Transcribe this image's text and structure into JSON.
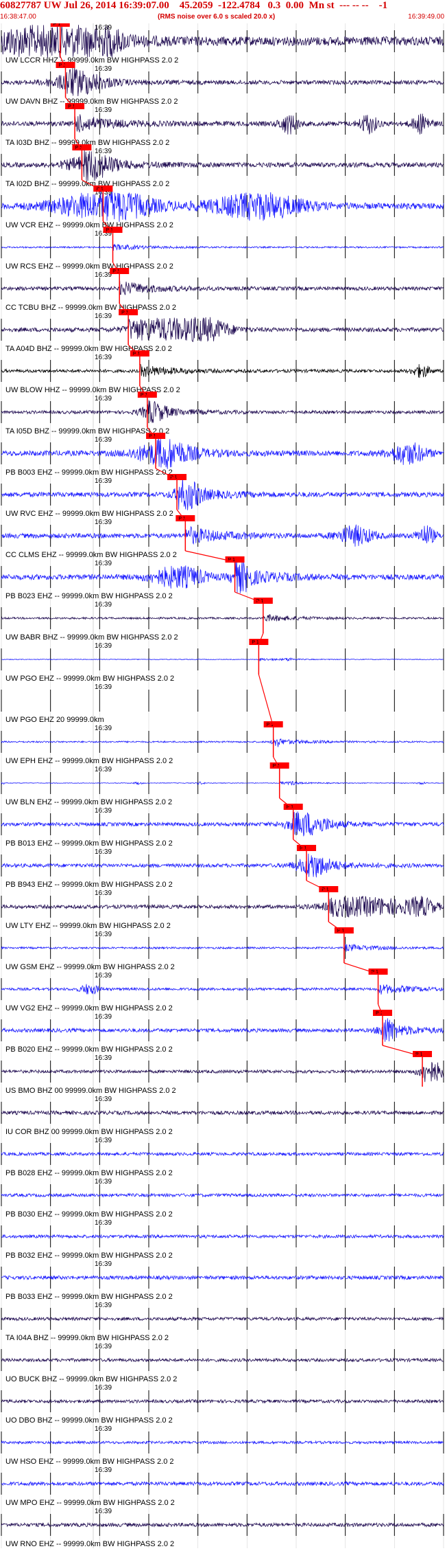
{
  "header": {
    "title": "60827787 UW Jul 26, 2014 16:39:07.00    45.2059  -122.4784   0.3  0.00  Mn st  --- -- --    -1",
    "start_time": "16:38:47.00",
    "note": "(RMS noise over 6.0 s scaled 20.0 x)",
    "end_time": "16:39:49.00"
  },
  "chart_data": {
    "type": "line",
    "x_range": [
      "16:38:47.00",
      "16:39:49.00"
    ],
    "minute_tick_label": "16:39",
    "phase_pick_label": "P 1",
    "grid": true,
    "colors": {
      "blue": "#1a1aff",
      "purple": "#1e0a50",
      "black": "#000000",
      "pick": "#ff0000"
    },
    "traces": [
      {
        "label": "UW LCCR HHZ -- 99999.0km BW  HIGHPASS  2.0  2",
        "color": "purple",
        "pick_frac": 0.133,
        "amp": 0.85,
        "bursts": [
          [
            0.1,
            0.12
          ],
          [
            0.2,
            0.05
          ]
        ]
      },
      {
        "label": "UW DAVN BHZ -- 99999.0km BW  HIGHPASS  2.0  2",
        "color": "purple",
        "pick_frac": 0.145,
        "amp": 0.4,
        "bursts": [
          [
            0.17,
            0.06
          ]
        ]
      },
      {
        "label": "TA I03D BHZ -- 99999.0km BW  HIGHPASS  2.0  2",
        "color": "purple",
        "pick_frac": 0.166,
        "amp": 0.45,
        "bursts": [
          [
            0.65,
            0.02
          ],
          [
            0.83,
            0.02
          ],
          [
            0.95,
            0.02
          ]
        ]
      },
      {
        "label": "TA I02D BHZ -- 99999.0km BW  HIGHPASS  2.0  2",
        "color": "purple",
        "pick_frac": 0.182,
        "amp": 0.45,
        "bursts": [
          [
            0.2,
            0.05
          ]
        ]
      },
      {
        "label": "UW VCR EHZ -- 99999.0km BW  HIGHPASS  2.0  2",
        "color": "blue",
        "pick_frac": 0.23,
        "amp": 0.6,
        "bursts": [
          [
            0.22,
            0.1
          ],
          [
            0.58,
            0.1
          ]
        ]
      },
      {
        "label": "UW RCS EHZ -- 99999.0km BW  HIGHPASS  2.0  2",
        "color": "blue",
        "pick_frac": 0.252,
        "amp": 0.15,
        "bursts": []
      },
      {
        "label": "CC TCBU BHZ -- 99999.0km BW  HIGHPASS  2.0  2",
        "color": "purple",
        "pick_frac": 0.267,
        "amp": 0.35,
        "bursts": []
      },
      {
        "label": "TA A04D BHZ -- 99999.0km BW  HIGHPASS  2.0  2",
        "color": "purple",
        "pick_frac": 0.287,
        "amp": 0.4,
        "bursts": [
          [
            0.38,
            0.08
          ],
          [
            0.47,
            0.05
          ]
        ]
      },
      {
        "label": "UW BLOW HHZ -- 99999.0km BW  HIGHPASS  2.0  2",
        "color": "black",
        "pick_frac": 0.313,
        "amp": 0.3,
        "bursts": [
          [
            0.95,
            0.02
          ]
        ]
      },
      {
        "label": "TA I05D BHZ -- 99999.0km BW  HIGHPASS  2.0  2",
        "color": "purple",
        "pick_frac": 0.33,
        "amp": 0.3,
        "bursts": [
          [
            0.34,
            0.03
          ]
        ]
      },
      {
        "label": "PB B003 EHZ -- 99999.0km BW  HIGHPASS  2.0  2",
        "color": "blue",
        "pick_frac": 0.349,
        "amp": 0.5,
        "bursts": [
          [
            0.36,
            0.06
          ],
          [
            0.92,
            0.04
          ]
        ]
      },
      {
        "label": "UW RVC EHZ -- 99999.0km BW  HIGHPASS  2.0  2",
        "color": "blue",
        "pick_frac": 0.397,
        "amp": 0.45,
        "bursts": [
          [
            0.42,
            0.03
          ]
        ]
      },
      {
        "label": "CC CLMS EHZ -- 99999.0km BW  HIGHPASS  2.0  2",
        "color": "blue",
        "pick_frac": 0.416,
        "amp": 0.45,
        "bursts": [
          [
            0.8,
            0.04
          ],
          [
            0.96,
            0.02
          ]
        ]
      },
      {
        "label": "PB B023 EHZ -- 99999.0km BW  HIGHPASS  2.0  2",
        "color": "blue",
        "pick_frac": 0.528,
        "amp": 0.5,
        "bursts": [
          [
            0.54,
            0.02
          ],
          [
            0.4,
            0.06
          ]
        ]
      },
      {
        "label": "UW BABR BHZ -- 99999.0km BW  HIGHPASS  2.0  2",
        "color": "purple",
        "pick_frac": 0.592,
        "amp": 0.18,
        "bursts": []
      },
      {
        "label": "UW PGO EHZ -- 99999.0km BW  HIGHPASS  2.0  2",
        "color": "blue",
        "pick_frac": 0.582,
        "amp": 0.06,
        "bursts": [
          [
            0.65,
            0.01
          ]
        ]
      },
      {
        "label": "UW PGO EHZ 20 99999.0km",
        "color": "blue",
        "pick_frac": -1,
        "amp": 0.0,
        "bursts": []
      },
      {
        "label": "UW EPH EHZ -- 99999.0km BW  HIGHPASS  2.0  2",
        "color": "blue",
        "pick_frac": 0.615,
        "amp": 0.15,
        "bursts": [
          [
            0.62,
            0.01
          ]
        ]
      },
      {
        "label": "UW BLN EHZ -- 99999.0km BW  HIGHPASS  2.0  2",
        "color": "blue",
        "pick_frac": 0.629,
        "amp": 0.06,
        "bursts": [
          [
            0.0,
            0.01
          ],
          [
            0.31,
            0.01
          ],
          [
            0.45,
            0.01
          ],
          [
            0.66,
            0.01
          ],
          [
            0.95,
            0.01
          ]
        ]
      },
      {
        "label": "PB B013 EHZ -- 99999.0km BW  HIGHPASS  2.0  2",
        "color": "blue",
        "pick_frac": 0.66,
        "amp": 0.35,
        "bursts": [
          [
            0.69,
            0.05
          ]
        ]
      },
      {
        "label": "PB B943 EHZ -- 99999.0km BW  HIGHPASS  2.0  2",
        "color": "blue",
        "pick_frac": 0.69,
        "amp": 0.35,
        "bursts": [
          [
            0.7,
            0.04
          ]
        ]
      },
      {
        "label": "UW LTY EHZ -- 99999.0km BW  HIGHPASS  2.0  2",
        "color": "purple",
        "pick_frac": 0.74,
        "amp": 0.35,
        "bursts": [
          [
            0.84,
            0.1
          ],
          [
            0.95,
            0.03
          ]
        ]
      },
      {
        "label": "UW GSM EHZ -- 99999.0km BW  HIGHPASS  2.0  2",
        "color": "blue",
        "pick_frac": 0.775,
        "amp": 0.18,
        "bursts": []
      },
      {
        "label": "UW VG2 EHZ -- 99999.0km BW  HIGHPASS  2.0  2",
        "color": "blue",
        "pick_frac": 0.852,
        "amp": 0.25,
        "bursts": [
          [
            0.2,
            0.02
          ]
        ]
      },
      {
        "label": "PB B020 EHZ -- 99999.0km BW  HIGHPASS  2.0  2",
        "color": "blue",
        "pick_frac": 0.862,
        "amp": 0.35,
        "bursts": [
          [
            0.87,
            0.02
          ]
        ]
      },
      {
        "label": "US BMO BHZ 00 99999.0km BW  HIGHPASS  2.0  2",
        "color": "purple",
        "pick_frac": 0.952,
        "amp": 0.3,
        "bursts": [
          [
            0.97,
            0.03
          ]
        ]
      },
      {
        "label": "IU COR BHZ 00 99999.0km BW  HIGHPASS  2.0  2",
        "color": "purple",
        "pick_frac": -1,
        "amp": 0.35,
        "bursts": []
      },
      {
        "label": "PB B028 EHZ -- 99999.0km BW  HIGHPASS  2.0  2",
        "color": "blue",
        "pick_frac": -1,
        "amp": 0.3,
        "bursts": []
      },
      {
        "label": "PB B030 EHZ -- 99999.0km BW  HIGHPASS  2.0  2",
        "color": "blue",
        "pick_frac": -1,
        "amp": 0.3,
        "bursts": []
      },
      {
        "label": "PB B032 EHZ -- 99999.0km BW  HIGHPASS  2.0  2",
        "color": "blue",
        "pick_frac": -1,
        "amp": 0.3,
        "bursts": []
      },
      {
        "label": "PB B033 EHZ -- 99999.0km BW  HIGHPASS  2.0  2",
        "color": "blue",
        "pick_frac": -1,
        "amp": 0.35,
        "bursts": []
      },
      {
        "label": "TA I04A BHZ -- 99999.0km BW  HIGHPASS  2.0  2",
        "color": "purple",
        "pick_frac": -1,
        "amp": 0.3,
        "bursts": []
      },
      {
        "label": "UO BUCK BHZ -- 99999.0km BW  HIGHPASS  2.0  2",
        "color": "purple",
        "pick_frac": -1,
        "amp": 0.3,
        "bursts": []
      },
      {
        "label": "UO DBO BHZ -- 99999.0km BW  HIGHPASS  2.0  2",
        "color": "purple",
        "pick_frac": -1,
        "amp": 0.3,
        "bursts": []
      },
      {
        "label": "UW HSO EHZ -- 99999.0km BW  HIGHPASS  2.0  2",
        "color": "blue",
        "pick_frac": -1,
        "amp": 0.25,
        "bursts": []
      },
      {
        "label": "UW MPO EHZ -- 99999.0km BW  HIGHPASS  2.0  2",
        "color": "blue",
        "pick_frac": -1,
        "amp": 0.35,
        "bursts": []
      },
      {
        "label": "UW RNO EHZ -- 99999.0km BW  HIGHPASS  2.0  2",
        "color": "purple",
        "pick_frac": -1,
        "amp": 0.35,
        "bursts": []
      }
    ]
  }
}
